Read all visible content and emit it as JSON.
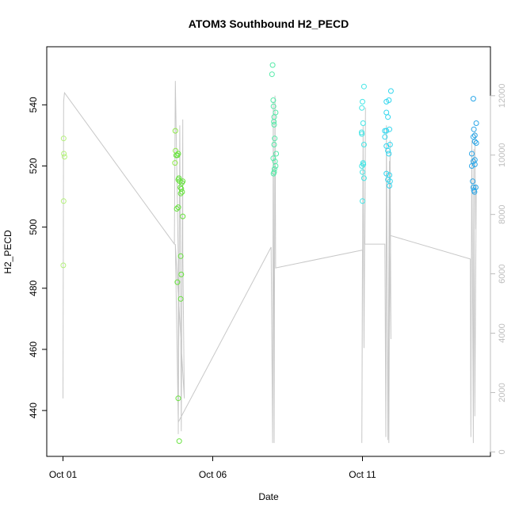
{
  "chart_data": {
    "type": "scatter",
    "title": "ATOM3 Southbound H2_PECD",
    "xlabel": "Date",
    "ylabel": "H2_PECD",
    "x_ticks": [
      "Oct 01",
      "Oct 06",
      "Oct 11"
    ],
    "x_range_days": [
      0.0,
      14.6
    ],
    "x_tick_days": [
      0,
      5,
      10
    ],
    "ylim": [
      425,
      559
    ],
    "y_ticks": [
      440,
      460,
      480,
      500,
      520,
      540
    ],
    "y2lim": [
      -150,
      13650
    ],
    "y2_ticks": [
      0,
      2000,
      4000,
      6000,
      8000,
      10000,
      12000
    ],
    "grid": false,
    "point_series": [
      {
        "color": "#b4f27a",
        "points": [
          [
            0.02,
            529
          ],
          [
            0.03,
            524
          ],
          [
            0.05,
            523
          ],
          [
            0.02,
            508.5
          ],
          [
            0.01,
            487.5
          ]
        ]
      },
      {
        "color": "#8ee84a",
        "points": [
          [
            3.75,
            531.5
          ],
          [
            3.76,
            525
          ],
          [
            3.74,
            521
          ]
        ]
      },
      {
        "color": "#66e23c",
        "points": [
          [
            3.78,
            523.5
          ],
          [
            3.82,
            523.5
          ],
          [
            3.85,
            524
          ],
          [
            3.85,
            515.5
          ],
          [
            3.87,
            516
          ],
          [
            3.9,
            515
          ],
          [
            3.92,
            513
          ],
          [
            3.93,
            511
          ],
          [
            3.95,
            512.5
          ],
          [
            3.97,
            514.5
          ],
          [
            3.98,
            511.5
          ],
          [
            4.0,
            515
          ],
          [
            4.0,
            503.5
          ],
          [
            3.93,
            490.5
          ],
          [
            3.95,
            484.5
          ],
          [
            3.93,
            476.5
          ],
          [
            3.8,
            506
          ],
          [
            3.85,
            506.5
          ],
          [
            3.82,
            482
          ],
          [
            3.85,
            444
          ],
          [
            3.88,
            430
          ]
        ]
      },
      {
        "color": "#55eaa8",
        "points": [
          [
            7.0,
            553
          ],
          [
            6.98,
            550
          ],
          [
            7.02,
            541.5
          ],
          [
            7.03,
            539.5
          ],
          [
            7.05,
            536
          ],
          [
            7.04,
            534.5
          ],
          [
            7.05,
            533.5
          ],
          [
            7.1,
            537.5
          ],
          [
            7.07,
            529
          ],
          [
            7.05,
            527
          ],
          [
            7.12,
            524
          ],
          [
            7.02,
            522.5
          ],
          [
            7.08,
            521.5
          ],
          [
            7.1,
            520
          ],
          [
            7.05,
            518
          ],
          [
            7.03,
            517.5
          ],
          [
            7.06,
            519
          ]
        ]
      },
      {
        "color": "#44e6e6",
        "points": [
          [
            10.05,
            546
          ],
          [
            10.0,
            541
          ],
          [
            9.98,
            539
          ],
          [
            10.02,
            534
          ],
          [
            9.97,
            531
          ],
          [
            9.98,
            530.5
          ],
          [
            10.05,
            527
          ],
          [
            10.02,
            521
          ],
          [
            10.03,
            520.5
          ],
          [
            9.98,
            520
          ],
          [
            10.0,
            518
          ],
          [
            10.05,
            516
          ],
          [
            10.0,
            508.5
          ]
        ]
      },
      {
        "color": "#33d6ee",
        "points": [
          [
            10.95,
            544.5
          ],
          [
            10.88,
            541.5
          ],
          [
            10.8,
            541
          ],
          [
            10.8,
            537.5
          ],
          [
            10.85,
            536
          ],
          [
            10.8,
            531.5
          ],
          [
            10.9,
            532
          ],
          [
            10.75,
            531.5
          ],
          [
            10.75,
            529.5
          ],
          [
            10.8,
            526.5
          ],
          [
            10.92,
            527
          ],
          [
            10.85,
            525
          ],
          [
            10.88,
            524
          ],
          [
            10.8,
            517.5
          ],
          [
            10.9,
            517
          ],
          [
            10.85,
            515.5
          ],
          [
            10.92,
            515
          ],
          [
            10.9,
            513.5
          ]
        ]
      },
      {
        "color": "#2aa6e8",
        "points": [
          [
            13.7,
            542
          ],
          [
            13.72,
            532
          ],
          [
            13.75,
            530
          ],
          [
            13.7,
            529.5
          ],
          [
            13.75,
            528
          ],
          [
            13.8,
            527.5
          ],
          [
            13.8,
            534
          ],
          [
            13.65,
            524
          ],
          [
            13.75,
            522
          ],
          [
            13.7,
            521.5
          ],
          [
            13.75,
            520.5
          ],
          [
            13.65,
            520
          ],
          [
            13.68,
            515
          ],
          [
            13.7,
            513
          ],
          [
            13.78,
            513
          ],
          [
            13.72,
            512
          ],
          [
            13.74,
            511.5
          ]
        ]
      }
    ],
    "line_series": {
      "color": "#c8c8c8",
      "y_axis": "right",
      "points": [
        [
          0.0,
          1800
        ],
        [
          0.02,
          11800
        ],
        [
          0.05,
          12100
        ],
        [
          3.72,
          7000
        ],
        [
          3.75,
          12500
        ],
        [
          3.85,
          6500
        ],
        [
          3.85,
          600
        ],
        [
          3.9,
          11000
        ],
        [
          3.95,
          700
        ],
        [
          4.0,
          11200
        ],
        [
          4.0,
          6800
        ],
        [
          4.05,
          1800
        ],
        [
          3.75,
          7000
        ],
        [
          3.85,
          1000
        ],
        [
          6.95,
          6900
        ],
        [
          7.0,
          300
        ],
        [
          7.02,
          11800
        ],
        [
          7.05,
          300
        ],
        [
          7.08,
          12000
        ],
        [
          7.1,
          6200
        ],
        [
          10.0,
          6800
        ],
        [
          9.98,
          300
        ],
        [
          10.02,
          11000
        ],
        [
          10.05,
          3500
        ],
        [
          10.1,
          11600
        ],
        [
          10.08,
          7000
        ],
        [
          10.75,
          7000
        ],
        [
          10.78,
          500
        ],
        [
          10.8,
          11000
        ],
        [
          10.85,
          400
        ],
        [
          10.9,
          9800
        ],
        [
          10.88,
          300
        ],
        [
          10.92,
          10500
        ],
        [
          10.95,
          3800
        ],
        [
          10.9,
          7300
        ],
        [
          13.6,
          6500
        ],
        [
          13.62,
          500
        ],
        [
          13.65,
          10500
        ],
        [
          13.7,
          300
        ],
        [
          13.72,
          10200
        ],
        [
          13.75,
          1200
        ],
        [
          13.8,
          9000
        ],
        [
          13.78,
          7500
        ],
        [
          13.75,
          10800
        ]
      ]
    }
  }
}
